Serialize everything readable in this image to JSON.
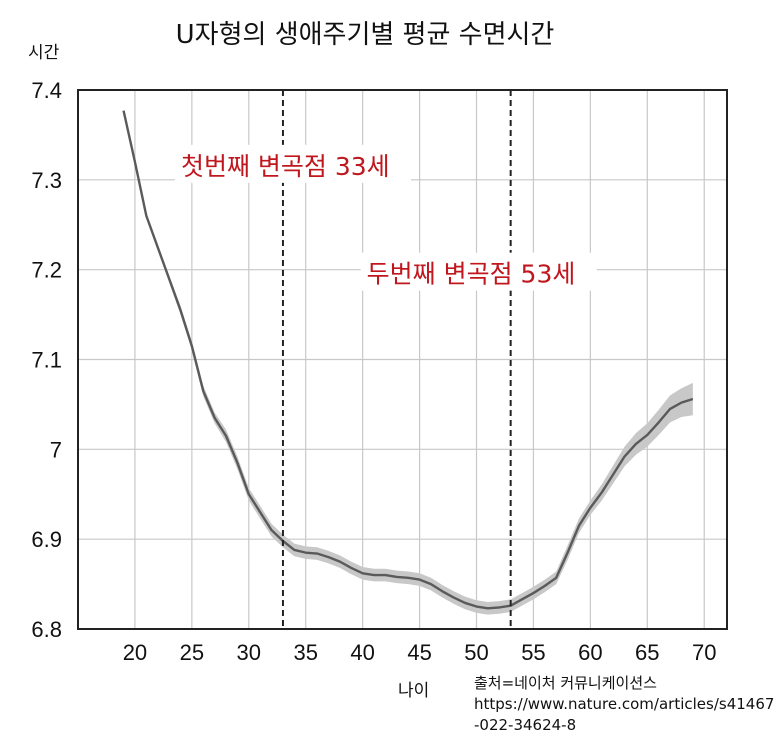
{
  "chart_data": {
    "type": "line",
    "title": "U자형의 생애주기별 평균 수면시간",
    "xlabel": "나이",
    "ylabel": "시간",
    "xlim": [
      15,
      72
    ],
    "ylim": [
      6.8,
      7.4
    ],
    "xticks": [
      20,
      25,
      30,
      35,
      40,
      45,
      50,
      55,
      60,
      65,
      70
    ],
    "yticks": [
      6.8,
      6.9,
      7.0,
      7.1,
      7.2,
      7.3,
      7.4
    ],
    "ytick_labels": [
      "6.8",
      "6.9",
      "7",
      "7.1",
      "7.2",
      "7.3",
      "7.4"
    ],
    "grid": true,
    "series": [
      {
        "x": [
          19,
          20,
          21,
          22,
          23,
          24,
          25,
          26,
          27,
          28,
          29,
          30,
          31,
          32,
          33,
          34,
          35,
          36,
          37,
          38,
          39,
          40,
          41,
          42,
          43,
          44,
          45,
          46,
          47,
          48,
          49,
          50,
          51,
          52,
          53,
          54,
          55,
          56,
          57,
          58,
          59,
          60,
          61,
          62,
          63,
          64,
          65,
          66,
          67,
          68,
          69
        ],
        "y": [
          7.377,
          7.32,
          7.26,
          7.225,
          7.19,
          7.155,
          7.115,
          7.065,
          7.035,
          7.015,
          6.985,
          6.95,
          6.93,
          6.91,
          6.898,
          6.888,
          6.885,
          6.884,
          6.88,
          6.875,
          6.868,
          6.862,
          6.86,
          6.86,
          6.858,
          6.857,
          6.855,
          6.85,
          6.842,
          6.835,
          6.829,
          6.825,
          6.823,
          6.824,
          6.826,
          6.833,
          6.84,
          6.848,
          6.857,
          6.885,
          6.915,
          6.935,
          6.952,
          6.972,
          6.992,
          7.006,
          7.016,
          7.03,
          7.045,
          7.052,
          7.056
        ],
        "band": [
          0.0,
          0.002,
          0.003,
          0.003,
          0.004,
          0.005,
          0.005,
          0.006,
          0.006,
          0.007,
          0.007,
          0.007,
          0.007,
          0.007,
          0.007,
          0.007,
          0.007,
          0.007,
          0.007,
          0.007,
          0.007,
          0.007,
          0.007,
          0.007,
          0.007,
          0.007,
          0.007,
          0.007,
          0.007,
          0.007,
          0.007,
          0.007,
          0.007,
          0.007,
          0.007,
          0.007,
          0.007,
          0.007,
          0.007,
          0.008,
          0.008,
          0.008,
          0.009,
          0.01,
          0.011,
          0.012,
          0.013,
          0.014,
          0.015,
          0.016,
          0.018
        ]
      }
    ],
    "vlines": [
      33,
      53
    ],
    "annotations": [
      {
        "text": "첫번째 변곡점 33세",
        "x": 33,
        "y": 7.31
      },
      {
        "text": "두번째 변곡점 53세",
        "x": 53,
        "y": 7.19
      }
    ],
    "colors": {
      "line": "#5a5a5a",
      "band": "#c8c8c8",
      "annotation": "#c0161d",
      "grid": "#c8c8c8"
    }
  },
  "source": {
    "line1": "출처=네이처 커뮤니케이션스",
    "line2": "https://www.nature.com/articles/s41467",
    "line3": "-022-34624-8"
  }
}
